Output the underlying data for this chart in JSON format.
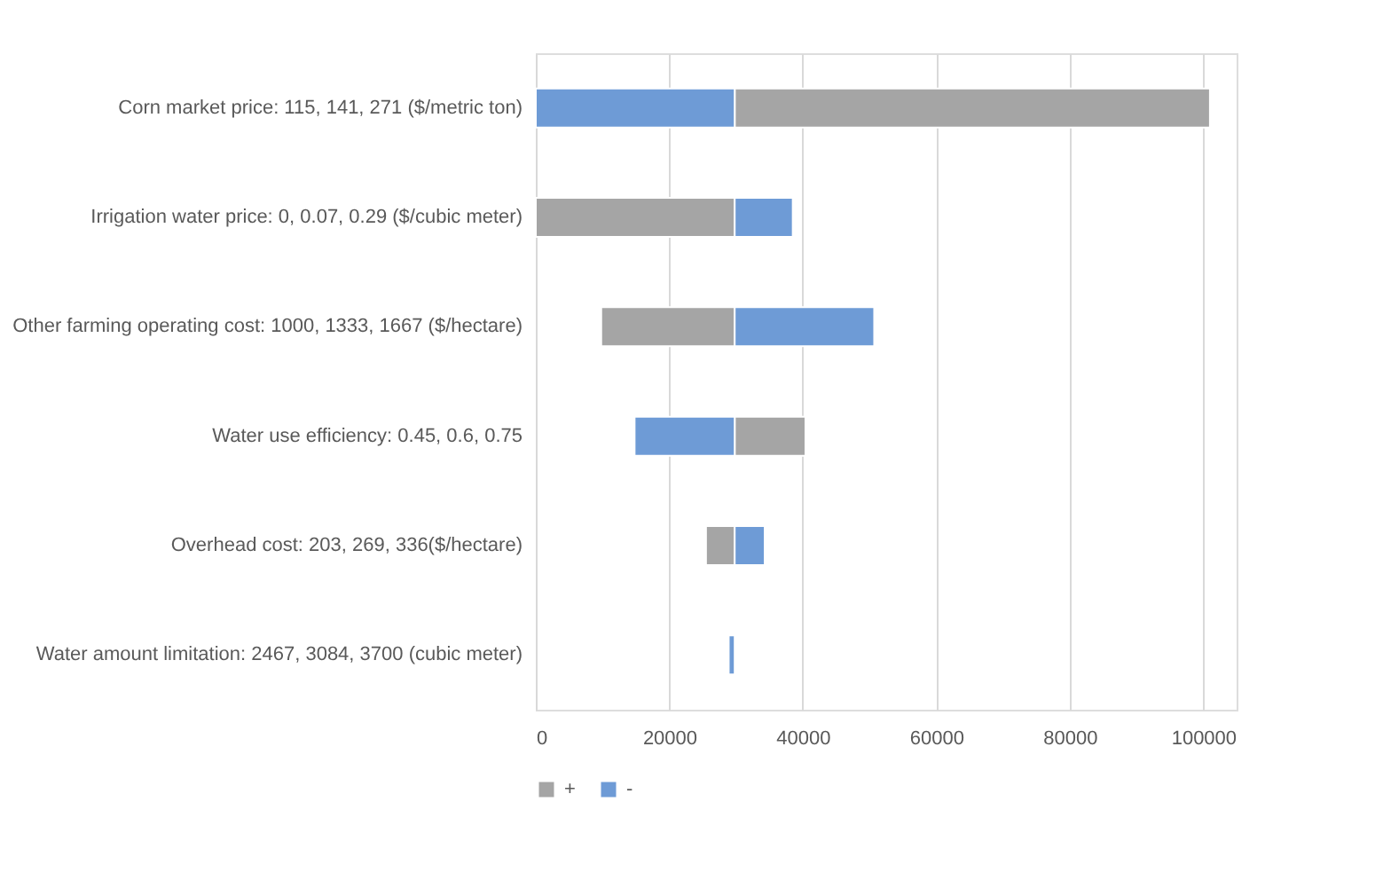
{
  "chart_data": {
    "type": "bar",
    "orientation": "horizontal",
    "categories": [
      "Corn market price: 115, 141, 271 ($/metric ton)",
      "Irrigation  water price: 0, 0.07, 0.29 ($/cubic meter)",
      "Other farming operating cost: 1000, 1333, 1667 ($/hectare)",
      "Water  use efficiency: 0.45, 0.6, 0.75",
      "Overhead  cost: 203, 269, 336($/hectare)",
      "Water amount limitation: 2467, 3084, 3700 (cubic meter)"
    ],
    "series": [
      {
        "name": "+",
        "color": "#a5a5a5",
        "base": [
          29800,
          0,
          9800,
          29800,
          25500,
          null
        ],
        "values": [
          71200,
          29800,
          20000,
          10600,
          4300,
          null
        ]
      },
      {
        "name": "-",
        "color": "#6e9bd6",
        "base": [
          0,
          29800,
          29800,
          14800,
          29800,
          28900
        ],
        "values": [
          29800,
          8700,
          20900,
          15000,
          4500,
          900
        ]
      }
    ],
    "xlim": [
      0,
      105000
    ],
    "xticks": [
      0,
      20000,
      40000,
      60000,
      80000,
      100000
    ],
    "grid": "x",
    "legend": "bottom"
  }
}
